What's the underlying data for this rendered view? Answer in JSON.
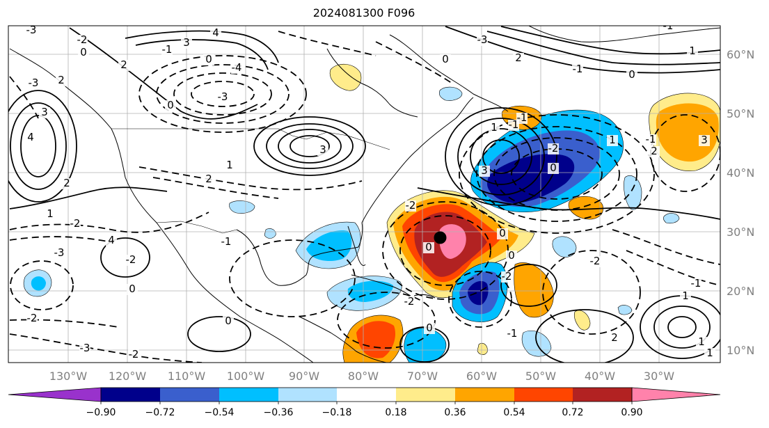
{
  "title": "2024081300 F096",
  "map": {
    "lon_labels": [
      "130°W",
      "120°W",
      "110°W",
      "100°W",
      "90°W",
      "80°W",
      "70°W",
      "60°W",
      "50°W",
      "40°W",
      "30°W"
    ],
    "lat_labels": [
      "60°N",
      "50°N",
      "40°N",
      "30°N",
      "20°N",
      "10°N"
    ],
    "contour_labels": [
      "-3",
      "-2",
      "4",
      "3",
      "-1",
      "0",
      "0",
      "-3",
      "2",
      "2",
      "-4",
      "-3",
      "0",
      "3",
      "4",
      "2",
      "1",
      "-2",
      "-3",
      "4",
      "-2",
      "0",
      "-2",
      "-3",
      "-2",
      "0",
      "-1",
      "3",
      "2",
      "1",
      "1",
      "-1",
      "3",
      "-2",
      "0",
      "1",
      "-1",
      "0",
      "0",
      "-2",
      "-2",
      "0",
      "-1",
      "2",
      "1",
      "1",
      "1",
      "-1",
      "0",
      "-1",
      "1",
      "-1",
      "-3",
      "2",
      "-1",
      "0",
      "-2",
      "0",
      "2",
      "-2",
      "3",
      "-1"
    ],
    "marker": {
      "name": "storm-center",
      "lon": -67,
      "lat": 29
    }
  },
  "colorbar": {
    "colors": [
      "#9932cc",
      "#00008b",
      "#3a5fcd",
      "#00bfff",
      "#b0e2ff",
      "#ffffff",
      "#ffec8b",
      "#ffa500",
      "#ff4500",
      "#b22222",
      "#ff82ab"
    ],
    "ticks": [
      "−0.90",
      "−0.72",
      "−0.54",
      "−0.36",
      "−0.18",
      "0.18",
      "0.36",
      "0.54",
      "0.72",
      "0.90"
    ],
    "extend": "both"
  }
}
